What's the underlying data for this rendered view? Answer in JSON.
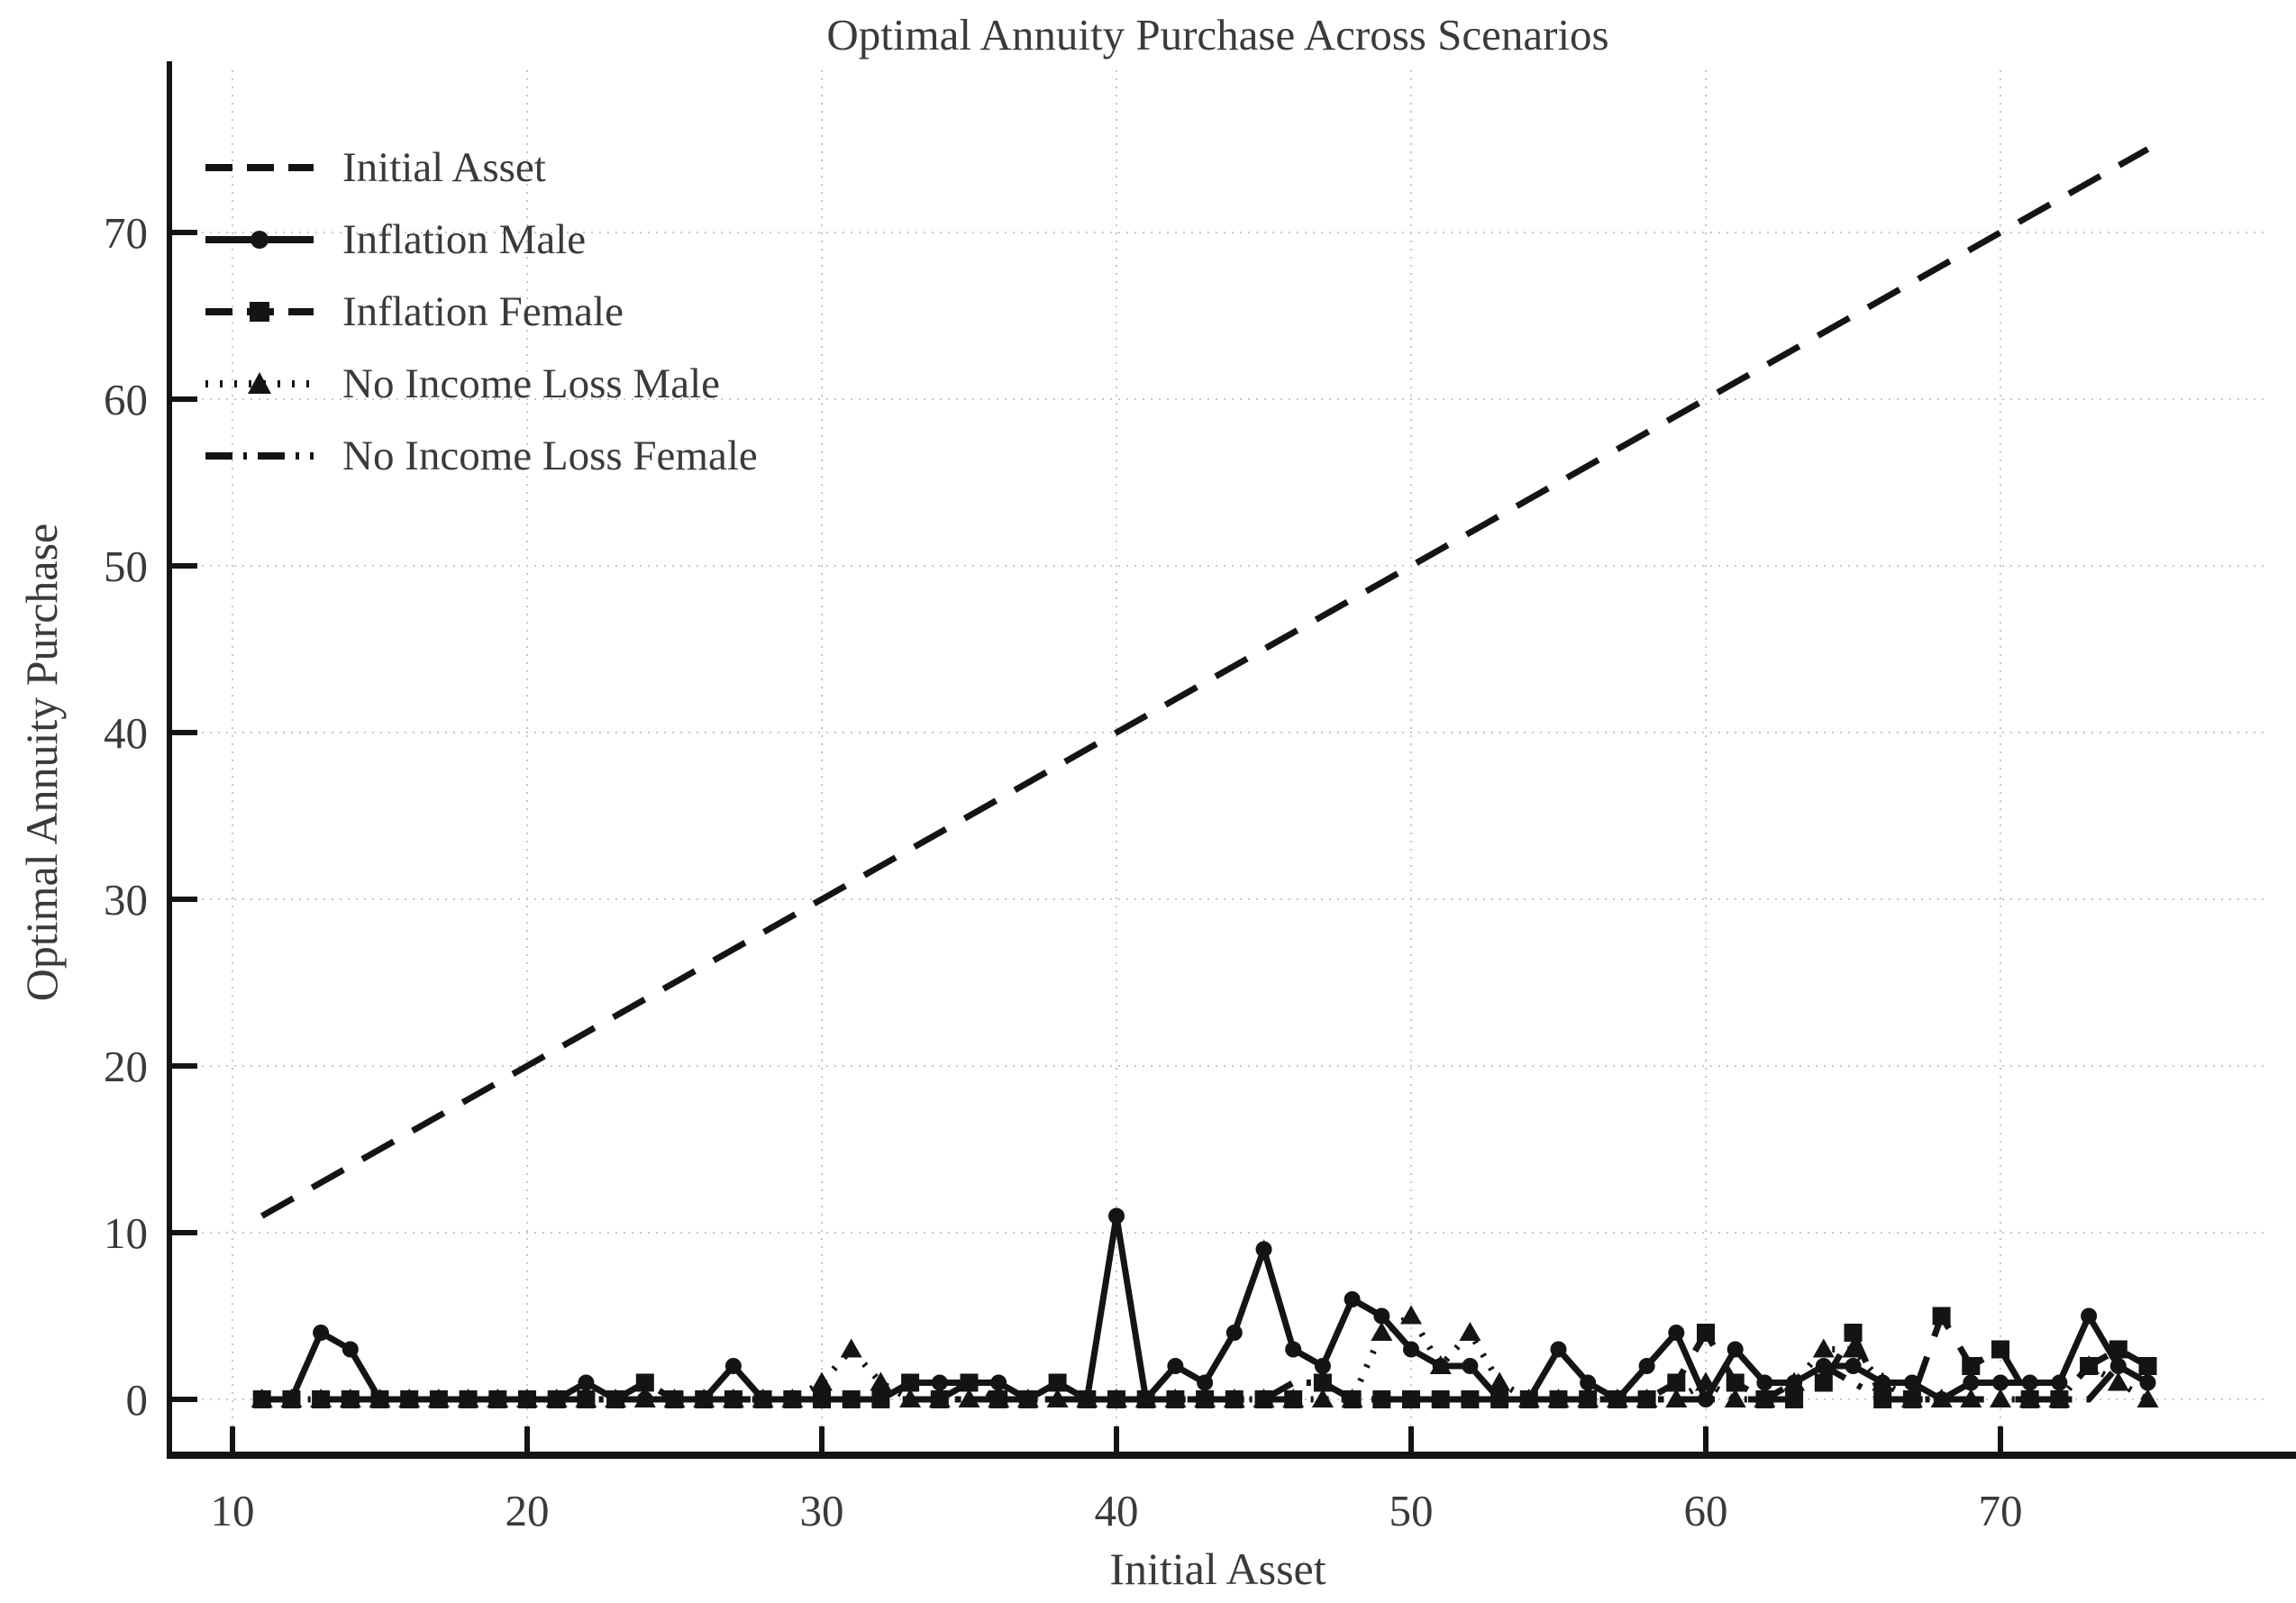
{
  "figure": {
    "title": "Optimal Annuity Purchase Across Scenarios",
    "xlabel": "Initial Asset",
    "ylabel": "Optimal Annuity Purchase"
  },
  "colors": {
    "line": "#141414",
    "text": "#3a3a3a",
    "grid": "#c8c8c8",
    "background": "#ffffff"
  },
  "chart_data": {
    "type": "line",
    "title": "Optimal Annuity Purchase Across Scenarios",
    "xlabel": "Initial Asset",
    "ylabel": "Optimal Annuity Purchase",
    "xlim": [
      7.9,
      79.0
    ],
    "ylim": [
      -3.4,
      79.7
    ],
    "xticks": [
      10,
      20,
      30,
      40,
      50,
      60,
      70
    ],
    "yticks": [
      0,
      10,
      20,
      30,
      40,
      50,
      60,
      70
    ],
    "grid": true,
    "legend_position": "upper-left",
    "x": [
      11,
      12,
      13,
      14,
      15,
      16,
      17,
      18,
      19,
      20,
      21,
      22,
      23,
      24,
      25,
      26,
      27,
      28,
      29,
      30,
      31,
      32,
      33,
      34,
      35,
      36,
      37,
      38,
      39,
      40,
      41,
      42,
      43,
      44,
      45,
      46,
      47,
      48,
      49,
      50,
      51,
      52,
      53,
      54,
      55,
      56,
      57,
      58,
      59,
      60,
      61,
      62,
      63,
      64,
      65,
      66,
      67,
      68,
      69,
      70,
      71,
      72,
      73,
      74,
      75
    ],
    "series": [
      {
        "name": "Initial Asset",
        "linestyle": "dashed",
        "marker": "none",
        "values": [
          11,
          12,
          13,
          14,
          15,
          16,
          17,
          18,
          19,
          20,
          21,
          22,
          23,
          24,
          25,
          26,
          27,
          28,
          29,
          30,
          31,
          32,
          33,
          34,
          35,
          36,
          37,
          38,
          39,
          40,
          41,
          42,
          43,
          44,
          45,
          46,
          47,
          48,
          49,
          50,
          51,
          52,
          53,
          54,
          55,
          56,
          57,
          58,
          59,
          60,
          61,
          62,
          63,
          64,
          65,
          66,
          67,
          68,
          69,
          70,
          71,
          72,
          73,
          74,
          75
        ]
      },
      {
        "name": "Inflation Male",
        "linestyle": "solid",
        "marker": "circle",
        "values": [
          0,
          0,
          4,
          3,
          0,
          0,
          0,
          0,
          0,
          0,
          0,
          1,
          0,
          0,
          0,
          0,
          2,
          0,
          0,
          0,
          0,
          0,
          1,
          1,
          1,
          1,
          0,
          1,
          0,
          11,
          0,
          2,
          1,
          4,
          9,
          3,
          2,
          6,
          5,
          3,
          2,
          2,
          0,
          0,
          3,
          1,
          0,
          2,
          4,
          0,
          3,
          1,
          1,
          2,
          2,
          1,
          1,
          0,
          1,
          1,
          1,
          1,
          5,
          2,
          1
        ]
      },
      {
        "name": "Inflation Female",
        "linestyle": "dashed",
        "marker": "square",
        "values": [
          0,
          0,
          0,
          0,
          0,
          0,
          0,
          0,
          0,
          0,
          0,
          0,
          0,
          1,
          0,
          0,
          0,
          0,
          0,
          0,
          0,
          0,
          1,
          0,
          1,
          0,
          0,
          1,
          0,
          0,
          0,
          0,
          0,
          0,
          0,
          0,
          1,
          0,
          0,
          0,
          0,
          0,
          0,
          0,
          0,
          0,
          0,
          0,
          1,
          4,
          1,
          0,
          0,
          1,
          4,
          0,
          0,
          5,
          2,
          3,
          0,
          0,
          2,
          3,
          2
        ]
      },
      {
        "name": "No Income Loss Male",
        "linestyle": "dotted",
        "marker": "triangle",
        "values": [
          0,
          0,
          0,
          0,
          0,
          0,
          0,
          0,
          0,
          0,
          0,
          0,
          0,
          0,
          0,
          0,
          0,
          0,
          0,
          1,
          3,
          1,
          0,
          0,
          0,
          0,
          0,
          0,
          0,
          0,
          0,
          0,
          0,
          0,
          0,
          0,
          0,
          0,
          4,
          5,
          2,
          4,
          1,
          0,
          0,
          0,
          0,
          0,
          0,
          1,
          0,
          0,
          1,
          3,
          3,
          1,
          0,
          0,
          0,
          0,
          0,
          0,
          2,
          1,
          0
        ]
      },
      {
        "name": "No Income Loss Female",
        "linestyle": "dashdot",
        "marker": "none",
        "values": [
          0,
          0,
          0,
          0,
          0,
          0,
          0,
          0,
          0,
          0,
          0,
          0,
          0,
          0,
          0,
          0,
          0,
          0,
          0,
          0,
          0,
          0,
          0,
          0,
          0,
          0,
          0,
          0,
          0,
          0,
          0,
          0,
          0,
          0,
          0,
          1,
          1,
          0,
          0,
          0,
          0,
          0,
          0,
          0,
          0,
          0,
          0,
          0,
          0,
          0,
          0,
          0,
          1,
          2,
          1,
          0,
          0,
          0,
          0,
          0,
          0,
          0,
          0,
          2,
          1
        ]
      }
    ]
  }
}
